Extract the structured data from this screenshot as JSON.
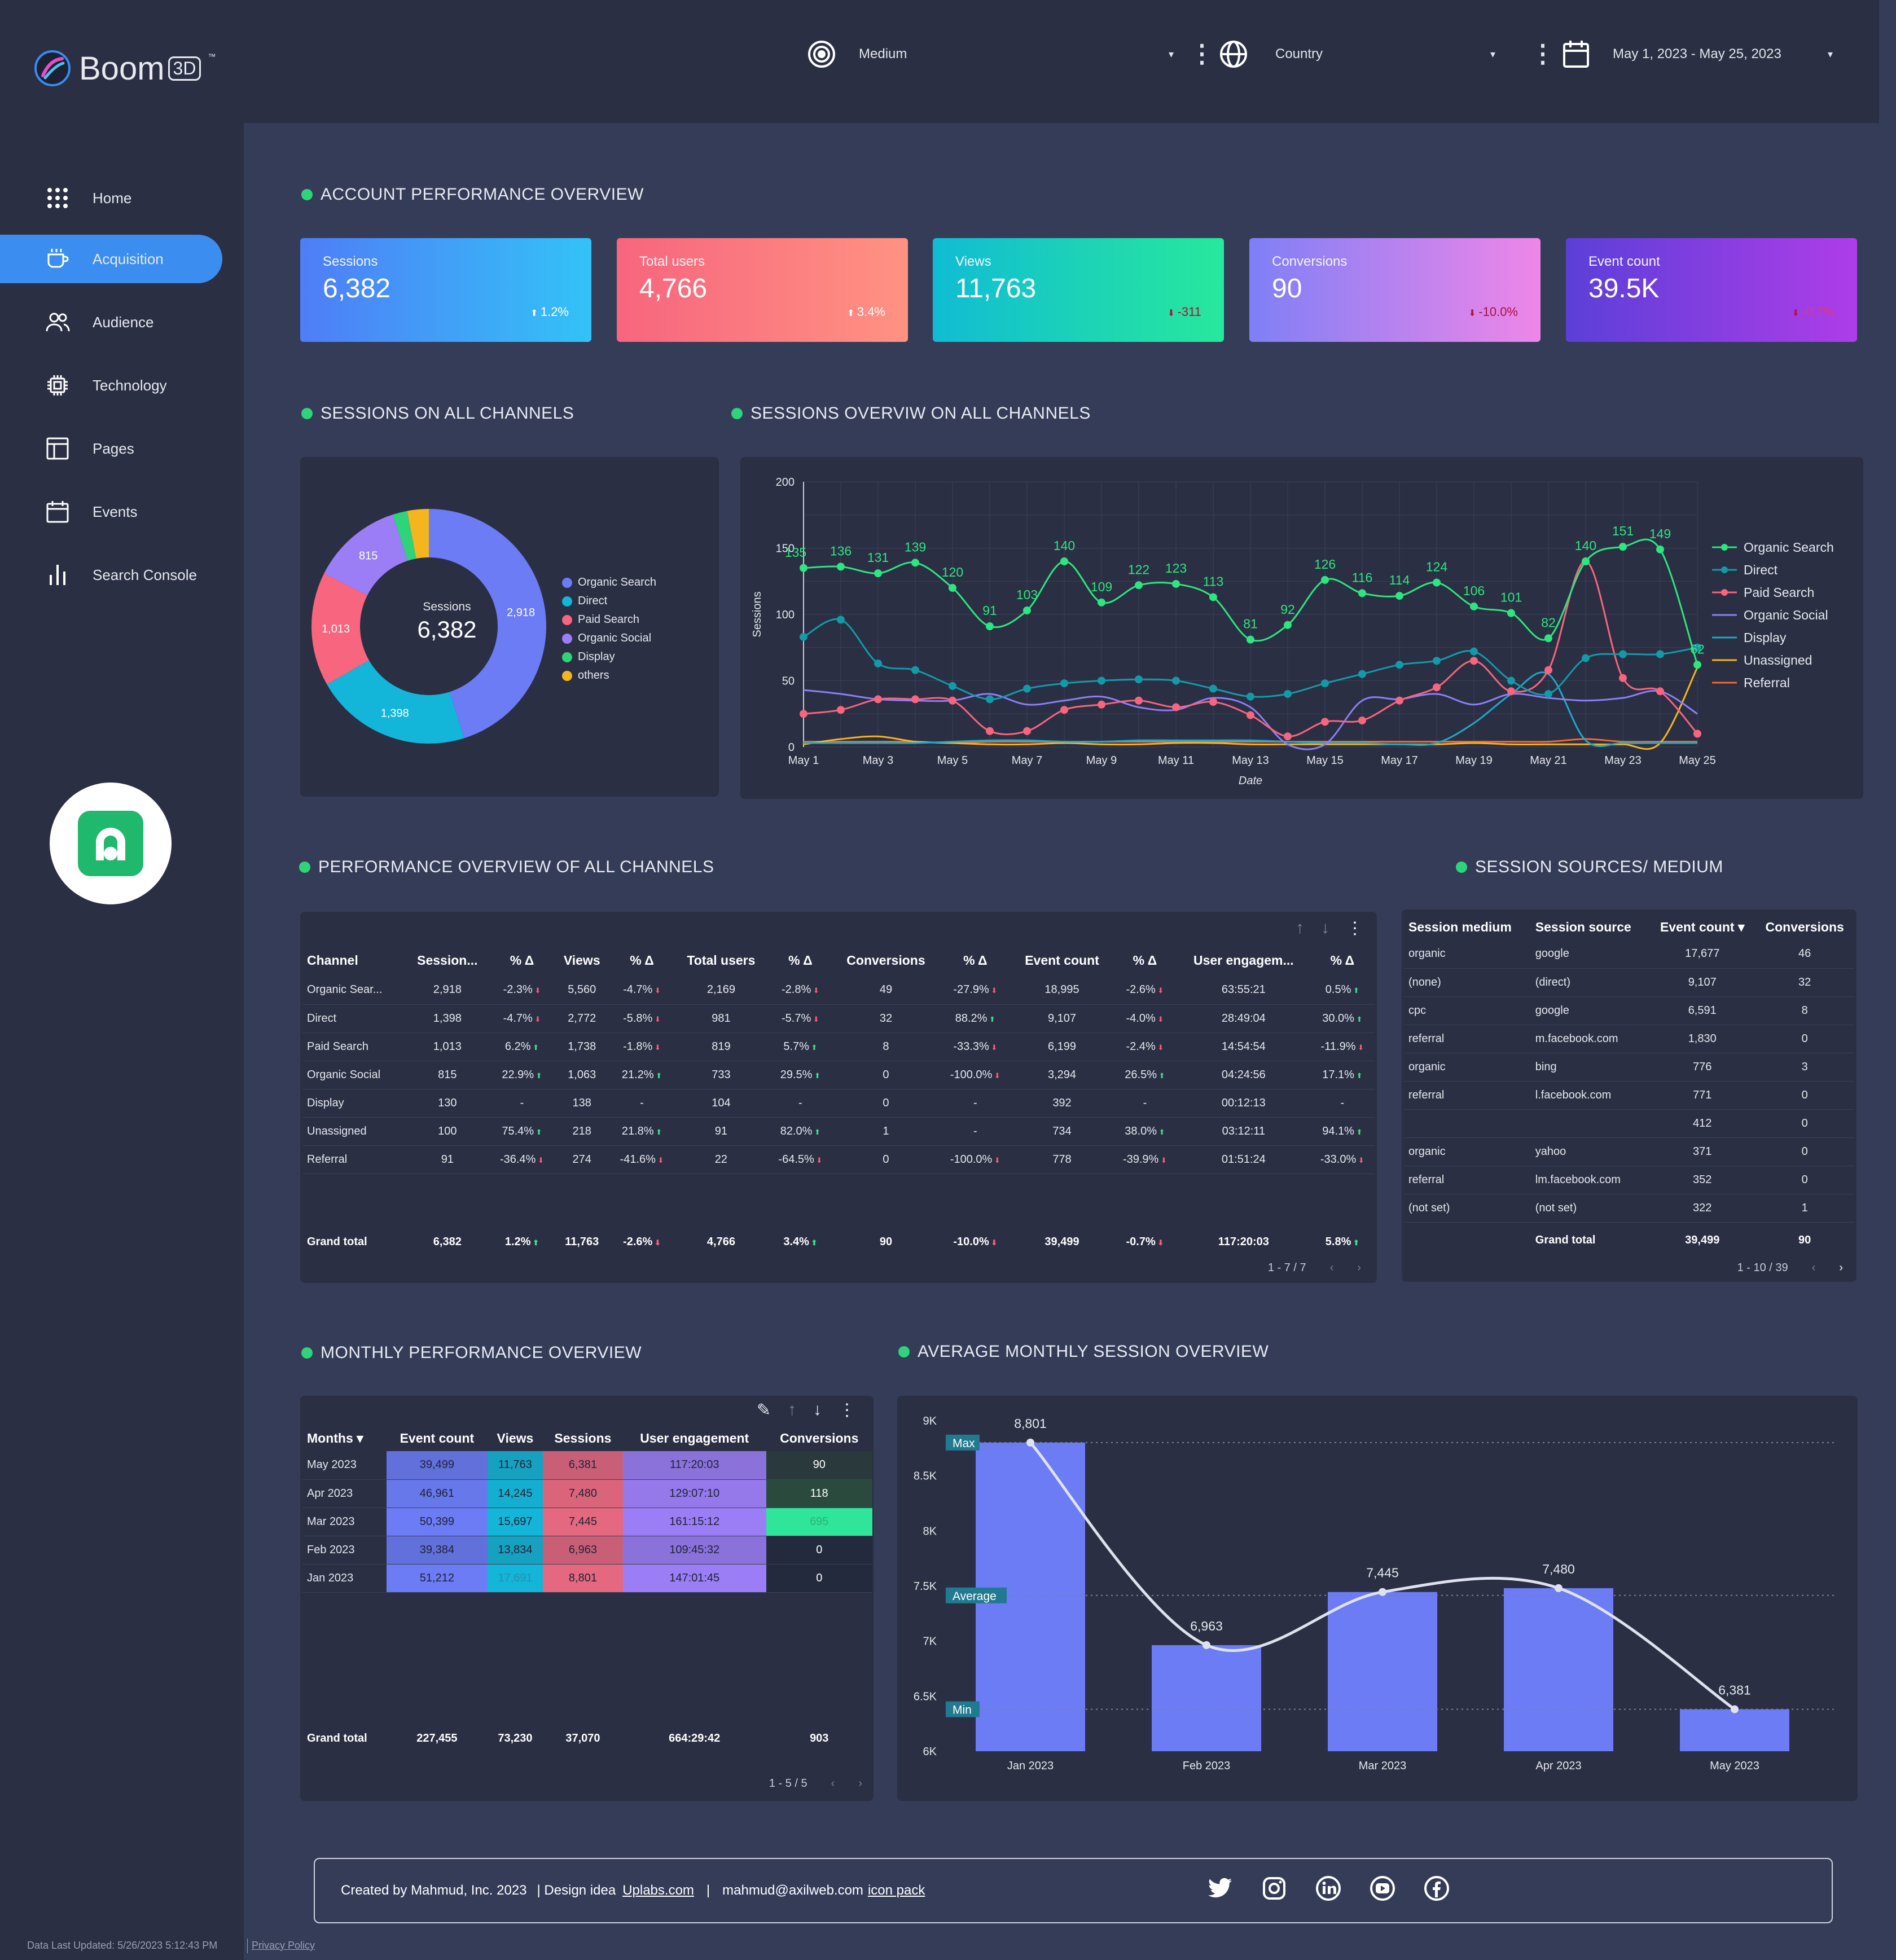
{
  "brand": {
    "name": "Boom",
    "suffix": "3D",
    "tm": "™"
  },
  "nav": [
    {
      "label": "Home",
      "icon": "grid-icon"
    },
    {
      "label": "Acquisition",
      "icon": "coffee-cup-icon",
      "active": true
    },
    {
      "label": "Audience",
      "icon": "users-icon"
    },
    {
      "label": "Technology",
      "icon": "chip-icon"
    },
    {
      "label": "Pages",
      "icon": "layout-icon"
    },
    {
      "label": "Events",
      "icon": "calendar-icon"
    },
    {
      "label": "Search Console",
      "icon": "bar-chart-icon"
    }
  ],
  "filters": {
    "medium": "Medium",
    "country": "Country",
    "date_range": "May 1, 2023 - May 25, 2023"
  },
  "sections": {
    "account": "ACCOUNT PERFORMANCE OVERVIEW",
    "sessions_channels": "SESSIONS ON ALL CHANNELS",
    "sessions_overview": "SESSIONS OVERVIW ON ALL CHANNELS",
    "perf_channels": "PERFORMANCE OVERVIEW OF ALL CHANNELS",
    "sources": "SESSION SOURCES/ MEDIUM",
    "monthly": "MONTHLY PERFORMANCE OVERVIEW",
    "avg_monthly": "AVERAGE MONTHLY SESSION OVERVIEW"
  },
  "kpis": [
    {
      "label": "Sessions",
      "value": "6,382",
      "delta": "1.2%",
      "dir": "up",
      "from": "#4f7df7",
      "to": "#33c2f7"
    },
    {
      "label": "Total users",
      "value": "4,766",
      "delta": "3.4%",
      "dir": "up",
      "from": "#f7657e",
      "to": "#ff9282"
    },
    {
      "label": "Views",
      "value": "11,763",
      "delta": "-311",
      "dir": "down",
      "from": "#10bcd4",
      "to": "#27e89c"
    },
    {
      "label": "Conversions",
      "value": "90",
      "delta": "-10.0%",
      "dir": "down",
      "from": "#7f7ff6",
      "to": "#ef86e8"
    },
    {
      "label": "Event count",
      "value": "39.5K",
      "delta": "-0.7%",
      "dir": "down",
      "from": "#5b3fd8",
      "to": "#ae3de8"
    }
  ],
  "donut": {
    "center_label": "Sessions",
    "center_value": "6,382",
    "slices": [
      {
        "name": "Organic Search",
        "value": 2918,
        "label": "2,918",
        "color": "#6b7cf5"
      },
      {
        "name": "Direct",
        "value": 1398,
        "label": "1,398",
        "color": "#13b5d8"
      },
      {
        "name": "Paid Search",
        "value": 1013,
        "label": "1,013",
        "color": "#f7657e"
      },
      {
        "name": "Organic Social",
        "value": 815,
        "label": "815",
        "color": "#9b7ef5"
      },
      {
        "name": "Display",
        "value": 130,
        "label": "",
        "color": "#2ed37a"
      },
      {
        "name": "others",
        "value": 191,
        "label": "",
        "color": "#f5b51e"
      }
    ]
  },
  "chart_data": [
    {
      "type": "line",
      "xlabel": "Date",
      "ylabel": "Sessions",
      "ylim": [
        0,
        200
      ],
      "yticks": [
        "0",
        "50",
        "100",
        "150",
        "200"
      ],
      "x": [
        "May 1",
        "May 2",
        "May 3",
        "May 4",
        "May 5",
        "May 6",
        "May 7",
        "May 8",
        "May 9",
        "May 10",
        "May 11",
        "May 12",
        "May 13",
        "May 14",
        "May 15",
        "May 16",
        "May 17",
        "May 18",
        "May 19",
        "May 20",
        "May 21",
        "May 22",
        "May 23",
        "May 24",
        "May 25"
      ],
      "xtick_labels": [
        "May 1",
        "May 3",
        "May 5",
        "May 7",
        "May 9",
        "May 11",
        "May 13",
        "May 15",
        "May 17",
        "May 19",
        "May 21",
        "May 23",
        "May 25"
      ],
      "legend": "right",
      "series": [
        {
          "name": "Organic Search",
          "color": "#2ee57f",
          "labels": true,
          "values": [
            135,
            136,
            131,
            139,
            120,
            91,
            103,
            140,
            109,
            122,
            123,
            113,
            81,
            92,
            126,
            116,
            114,
            124,
            106,
            101,
            82,
            140,
            151,
            149,
            62
          ]
        },
        {
          "name": "Direct",
          "color": "#139aa8",
          "values": [
            83,
            96,
            63,
            58,
            46,
            36,
            44,
            48,
            50,
            51,
            50,
            44,
            38,
            40,
            48,
            55,
            62,
            65,
            72,
            50,
            40,
            67,
            70,
            70,
            75
          ]
        },
        {
          "name": "Paid Search",
          "color": "#f7657e",
          "values": [
            25,
            28,
            36,
            36,
            35,
            12,
            12,
            28,
            32,
            35,
            30,
            34,
            24,
            8,
            19,
            20,
            35,
            45,
            65,
            42,
            58,
            140,
            52,
            42,
            10
          ]
        },
        {
          "name": "Organic Social",
          "color": "#8d7ef5",
          "values": [
            43,
            40,
            36,
            35,
            35,
            40,
            32,
            35,
            38,
            30,
            28,
            37,
            30,
            2,
            2,
            35,
            36,
            40,
            32,
            40,
            37,
            35,
            37,
            42,
            25
          ]
        },
        {
          "name": "Display",
          "color": "#20a8c8",
          "values": [
            3,
            3,
            3,
            3,
            4,
            5,
            5,
            4,
            4,
            5,
            5,
            5,
            5,
            4,
            3,
            3,
            2,
            3,
            18,
            40,
            55,
            5,
            3,
            3,
            3
          ]
        },
        {
          "name": "Unassigned",
          "color": "#f5b51e",
          "values": [
            2,
            6,
            8,
            4,
            3,
            2,
            2,
            3,
            2,
            2,
            3,
            3,
            2,
            2,
            2,
            2,
            2,
            2,
            3,
            2,
            2,
            2,
            2,
            3,
            60
          ]
        },
        {
          "name": "Referral",
          "color": "#f26a30",
          "values": [
            4,
            4,
            4,
            4,
            3,
            4,
            4,
            4,
            4,
            4,
            4,
            4,
            4,
            4,
            4,
            4,
            4,
            4,
            4,
            4,
            4,
            6,
            4,
            4,
            4
          ]
        }
      ]
    },
    {
      "type": "bar",
      "categories": [
        "Jan 2023",
        "Feb 2023",
        "Mar 2023",
        "Apr 2023",
        "May 2023"
      ],
      "values": [
        8801,
        6963,
        7445,
        7480,
        6381
      ],
      "labels": [
        "8,801",
        "6,963",
        "7,445",
        "7,480",
        "6,381"
      ],
      "ylim": [
        6000,
        9000
      ],
      "yticks": [
        "6K",
        "6.5K",
        "7K",
        "7.5K",
        "8K",
        "8.5K",
        "9K"
      ],
      "reference_lines": [
        {
          "name": "Max",
          "value": 8801
        },
        {
          "name": "Average",
          "value": 7414
        },
        {
          "name": "Min",
          "value": 6381
        }
      ],
      "bar_color": "#6b7cf5"
    }
  ],
  "perf_table": {
    "headers": [
      "Channel",
      "Session...",
      "% Δ",
      "Views",
      "% Δ",
      "Total users",
      "% Δ",
      "Conversions",
      "% Δ",
      "Event count",
      "% Δ",
      "User engagem...",
      "% Δ"
    ],
    "rows": [
      [
        "Organic Sear...",
        "2,918",
        "-2.3%",
        "5,560",
        "-4.7%",
        "2,169",
        "-2.8%",
        "49",
        "-27.9%",
        "18,995",
        "-2.6%",
        "63:55:21",
        "0.5%"
      ],
      [
        "Direct",
        "1,398",
        "-4.7%",
        "2,772",
        "-5.8%",
        "981",
        "-5.7%",
        "32",
        "88.2%",
        "9,107",
        "-4.0%",
        "28:49:04",
        "30.0%"
      ],
      [
        "Paid Search",
        "1,013",
        "6.2%",
        "1,738",
        "-1.8%",
        "819",
        "5.7%",
        "8",
        "-33.3%",
        "6,199",
        "-2.4%",
        "14:54:54",
        "-11.9%"
      ],
      [
        "Organic Social",
        "815",
        "22.9%",
        "1,063",
        "21.2%",
        "733",
        "29.5%",
        "0",
        "-100.0%",
        "3,294",
        "26.5%",
        "04:24:56",
        "17.1%"
      ],
      [
        "Display",
        "130",
        "-",
        "138",
        "-",
        "104",
        "-",
        "0",
        "-",
        "392",
        "-",
        "00:12:13",
        "-"
      ],
      [
        "Unassigned",
        "100",
        "75.4%",
        "218",
        "21.8%",
        "91",
        "82.0%",
        "1",
        "-",
        "734",
        "38.0%",
        "03:12:11",
        "94.1%"
      ],
      [
        "Referral",
        "91",
        "-36.4%",
        "274",
        "-41.6%",
        "22",
        "-64.5%",
        "0",
        "-100.0%",
        "778",
        "-39.9%",
        "01:51:24",
        "-33.0%"
      ]
    ],
    "total": [
      "Grand total",
      "6,382",
      "1.2%",
      "11,763",
      "-2.6%",
      "4,766",
      "3.4%",
      "90",
      "-10.0%",
      "39,499",
      "-0.7%",
      "117:20:03",
      "5.8%"
    ],
    "pager": "1 - 7 / 7"
  },
  "source_table": {
    "headers": [
      "Session medium",
      "Session source",
      "Event count ▾",
      "Conversions"
    ],
    "rows": [
      [
        "organic",
        "google",
        "17,677",
        "46"
      ],
      [
        "(none)",
        "(direct)",
        "9,107",
        "32"
      ],
      [
        "cpc",
        "google",
        "6,591",
        "8"
      ],
      [
        "referral",
        "m.facebook.com",
        "1,830",
        "0"
      ],
      [
        "organic",
        "bing",
        "776",
        "3"
      ],
      [
        "referral",
        "l.facebook.com",
        "771",
        "0"
      ],
      [
        "",
        "",
        "412",
        "0"
      ],
      [
        "organic",
        "yahoo",
        "371",
        "0"
      ],
      [
        "referral",
        "lm.facebook.com",
        "352",
        "0"
      ],
      [
        "(not set)",
        "(not set)",
        "322",
        "1"
      ]
    ],
    "total": [
      "",
      "Grand total",
      "39,499",
      "90"
    ],
    "pager": "1 - 10 / 39"
  },
  "monthly_table": {
    "headers": [
      "Months ▾",
      "Event count",
      "Views",
      "Sessions",
      "User engagement",
      "Conversions"
    ],
    "rows": [
      [
        "May 2023",
        "39,499",
        "11,763",
        "6,381",
        "117:20:03",
        "90"
      ],
      [
        "Apr 2023",
        "46,961",
        "14,245",
        "7,480",
        "129:07:10",
        "118"
      ],
      [
        "Mar 2023",
        "50,399",
        "15,697",
        "7,445",
        "161:15:12",
        "695"
      ],
      [
        "Feb 2023",
        "39,384",
        "13,834",
        "6,963",
        "109:45:32",
        "0"
      ],
      [
        "Jan 2023",
        "51,212",
        "17,691",
        "8,801",
        "147:01:45",
        "0"
      ]
    ],
    "total": [
      "Grand total",
      "227,455",
      "73,230",
      "37,070",
      "664:29:42",
      "903"
    ],
    "pager": "1 - 5 / 5"
  },
  "footer": {
    "created": "Created by Mahmud, Inc. 2023",
    "design_prefix": "| Design idea",
    "design_link": "Uplabs.com",
    "sep": "|",
    "email": "mahmud@axilweb.com",
    "icon_link": "icon pack"
  },
  "bottom": {
    "updated": "Data Last Updated: 5/26/2023 5:12:43 PM",
    "privacy": "Privacy Policy"
  }
}
